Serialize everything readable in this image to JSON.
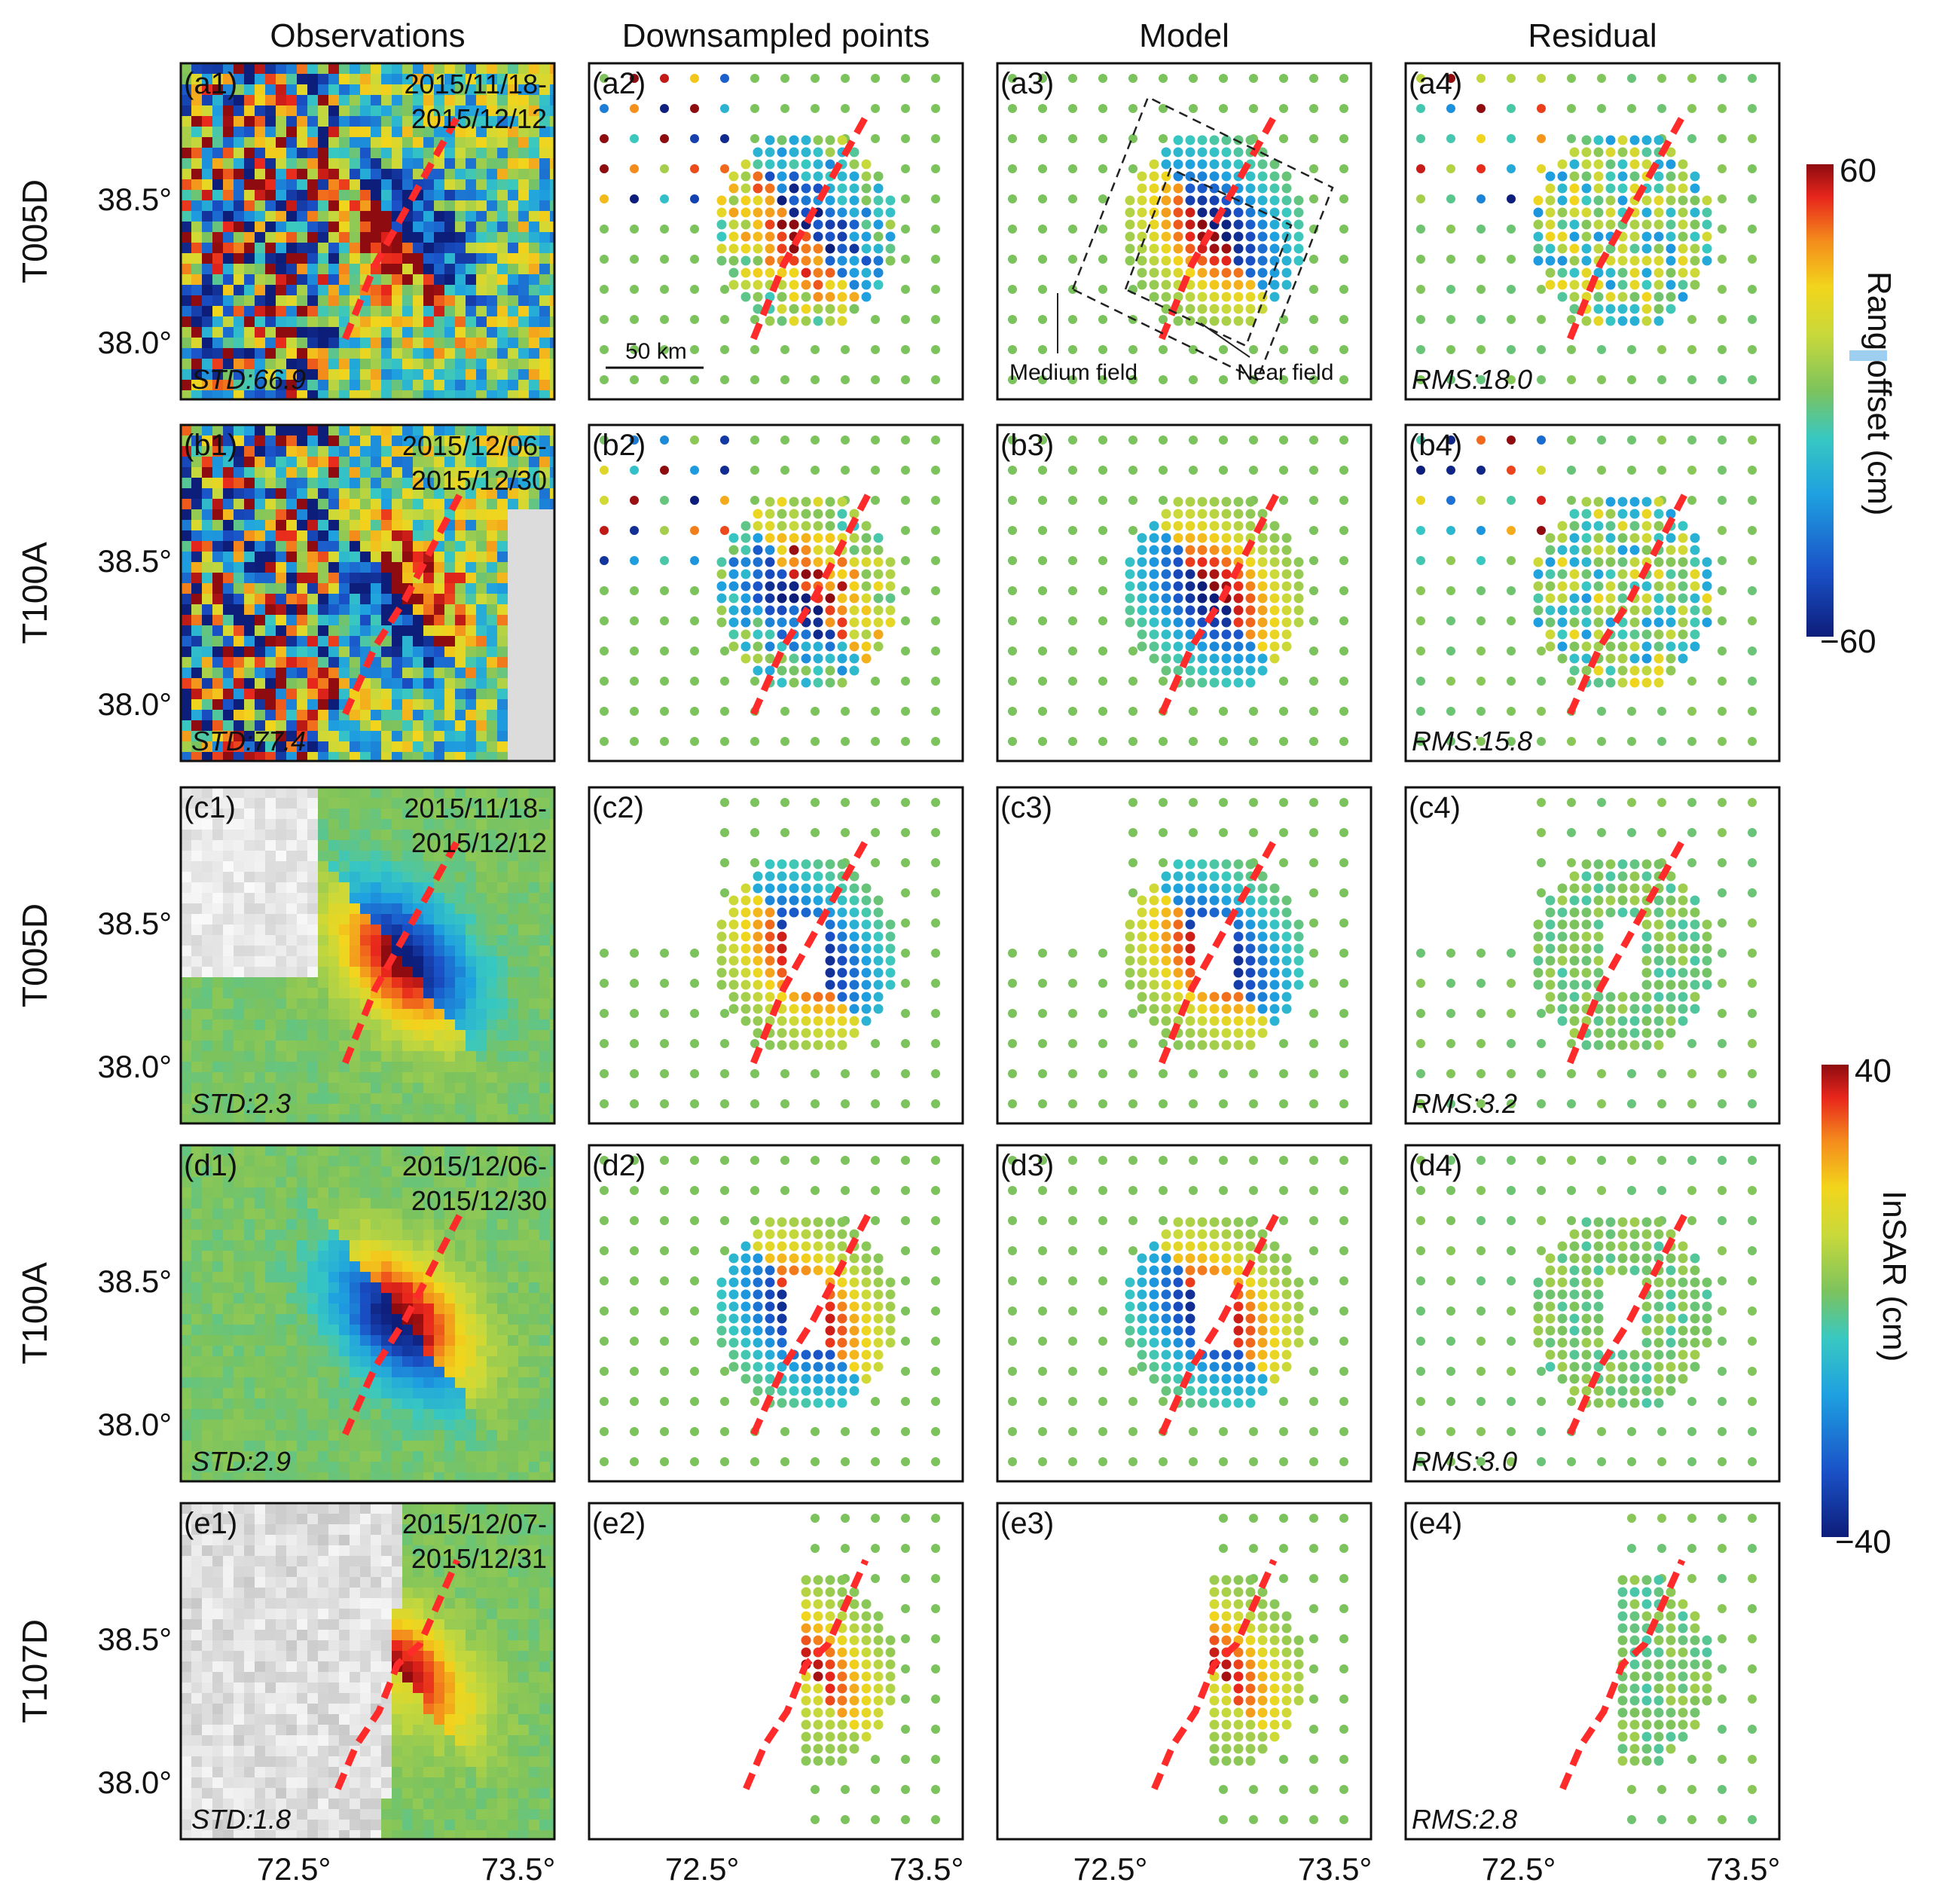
{
  "columns": [
    "Observations",
    "Downsampled points",
    "Model",
    "Residual"
  ],
  "rows": [
    {
      "track": "T005D",
      "date1": "2015/11/18-",
      "date2": "2015/12/12",
      "std": "STD:66.9",
      "rms": "RMS:18.0",
      "labels": [
        "(a1)",
        "(a2)",
        "(a3)",
        "(a4)"
      ],
      "kind": "range",
      "pattern": "A"
    },
    {
      "track": "T100A",
      "date1": "2015/12/06-",
      "date2": "2015/12/30",
      "std": "STD:77.4",
      "rms": "RMS:15.8",
      "labels": [
        "(b1)",
        "(b2)",
        "(b3)",
        "(b4)"
      ],
      "kind": "range",
      "pattern": "B"
    },
    {
      "track": "T005D",
      "date1": "2015/11/18-",
      "date2": "2015/12/12",
      "std": "STD:2.3",
      "rms": "RMS:3.2",
      "labels": [
        "(c1)",
        "(c2)",
        "(c3)",
        "(c4)"
      ],
      "kind": "insar",
      "pattern": "A"
    },
    {
      "track": "T100A",
      "date1": "2015/12/06-",
      "date2": "2015/12/30",
      "std": "STD:2.9",
      "rms": "RMS:3.0",
      "labels": [
        "(d1)",
        "(d2)",
        "(d3)",
        "(d4)"
      ],
      "kind": "insar",
      "pattern": "B"
    },
    {
      "track": "T107D",
      "date1": "2015/12/07-",
      "date2": "2015/12/31",
      "std": "STD:1.8",
      "rms": "RMS:2.8",
      "labels": [
        "(e1)",
        "(e2)",
        "(e3)",
        "(e4)"
      ],
      "kind": "insar",
      "pattern": "E"
    }
  ],
  "lat_ticks": [
    "38.5°",
    "38.0°"
  ],
  "lon_ticks": [
    "72.5°",
    "73.5°"
  ],
  "annotations": {
    "scale_bar": "50 km",
    "medium_field": "Medium field",
    "near_field": "Near field"
  },
  "colorbars": [
    {
      "title": "Rang offset (cm)",
      "max": "60",
      "min": "−60"
    },
    {
      "title": "InSAR (cm)",
      "max": "40",
      "min": "−40"
    }
  ],
  "colors": {
    "fault": "#ff2a2a",
    "background_green": "#7cc35e",
    "positive": "#c8101e",
    "negative": "#0a2d8c"
  }
}
